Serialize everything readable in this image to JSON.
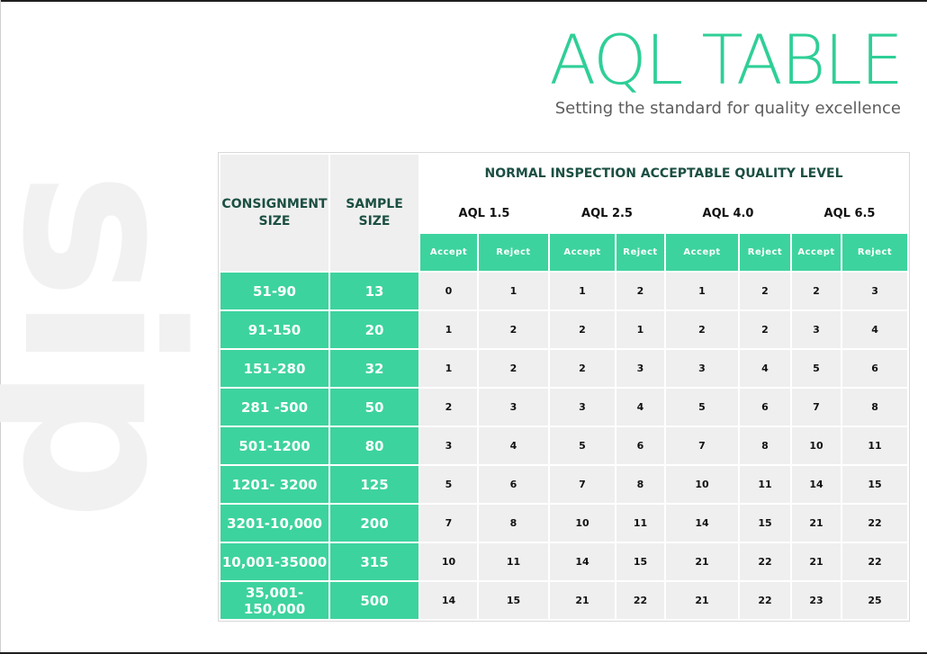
{
  "watermark": "sip",
  "title": "AQL TABLE",
  "subtitle": "Setting the standard for quality excellence",
  "table": {
    "col_consignment": "CONSIGNMENT SIZE",
    "col_sample": "SAMPLE SIZE",
    "main_header": "NORMAL INSPECTION ACCEPTABLE QUALITY LEVEL",
    "aql_levels": [
      "AQL 1.5",
      "AQL 2.5",
      "AQL 4.0",
      "AQL 6.5"
    ],
    "accept_label": "Accept",
    "reject_label": "Reject",
    "rows": [
      {
        "consignment": "51-90",
        "sample": "13",
        "values": [
          "0",
          "1",
          "1",
          "2",
          "1",
          "2",
          "2",
          "3"
        ]
      },
      {
        "consignment": "91-150",
        "sample": "20",
        "values": [
          "1",
          "2",
          "2",
          "1",
          "2",
          "2",
          "3",
          "4"
        ]
      },
      {
        "consignment": "151-280",
        "sample": "32",
        "values": [
          "1",
          "2",
          "2",
          "3",
          "3",
          "4",
          "5",
          "6"
        ]
      },
      {
        "consignment": "281 -500",
        "sample": "50",
        "values": [
          "2",
          "3",
          "3",
          "4",
          "5",
          "6",
          "7",
          "8"
        ]
      },
      {
        "consignment": "501-1200",
        "sample": "80",
        "values": [
          "3",
          "4",
          "5",
          "6",
          "7",
          "8",
          "10",
          "11"
        ]
      },
      {
        "consignment": "1201- 3200",
        "sample": "125",
        "values": [
          "5",
          "6",
          "7",
          "8",
          "10",
          "11",
          "14",
          "15"
        ]
      },
      {
        "consignment": "3201-10,000",
        "sample": "200",
        "values": [
          "7",
          "8",
          "10",
          "11",
          "14",
          "15",
          "21",
          "22"
        ]
      },
      {
        "consignment": "10,001-35000",
        "sample": "315",
        "values": [
          "10",
          "11",
          "14",
          "15",
          "21",
          "22",
          "21",
          "22"
        ]
      },
      {
        "consignment": "35,001-150,000",
        "sample": "500",
        "values": [
          "14",
          "15",
          "21",
          "22",
          "21",
          "22",
          "23",
          "25"
        ]
      }
    ]
  },
  "colors": {
    "accent": "#2fcf97",
    "green_cell": "#3dd39e",
    "grey_cell": "#efefef",
    "header_text": "#1b4f42"
  }
}
